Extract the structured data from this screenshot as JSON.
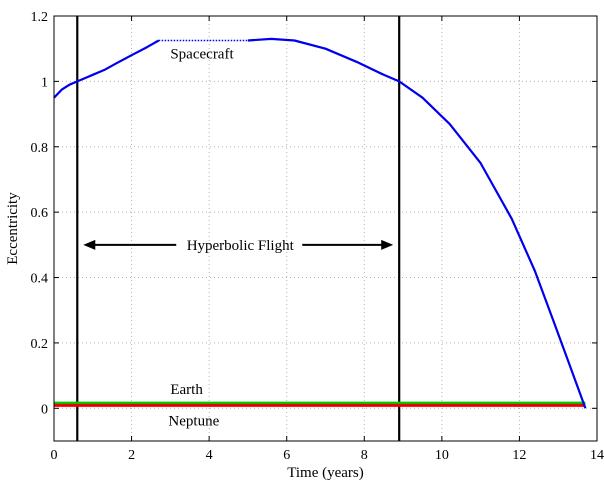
{
  "chart_data": {
    "type": "line",
    "title": "",
    "xlabel": "Time (years)",
    "ylabel": "Eccentricity",
    "xlim": [
      0,
      14
    ],
    "ylim": [
      -0.1,
      1.2
    ],
    "xticks": [
      0,
      2,
      4,
      6,
      8,
      10,
      12,
      14
    ],
    "yticks": [
      0,
      0.2,
      0.4,
      0.6,
      0.8,
      1,
      1.2
    ],
    "xtick_labels": [
      "0",
      "2",
      "4",
      "6",
      "8",
      "10",
      "12",
      "14"
    ],
    "ytick_labels": [
      "0",
      "0.2",
      "0.4",
      "0.6",
      "0.8",
      "1",
      "1.2"
    ],
    "grid": true,
    "series": [
      {
        "name": "Spacecraft",
        "color": "#0000ee",
        "segments": [
          {
            "style": "solid",
            "x": [
              0,
              0.2,
              0.4,
              0.6,
              0.8,
              1.0,
              1.3,
              1.6,
              2.0,
              2.4,
              2.7
            ],
            "y": [
              0.95,
              0.975,
              0.99,
              1.0,
              1.01,
              1.02,
              1.035,
              1.055,
              1.08,
              1.105,
              1.125
            ]
          },
          {
            "style": "dotted",
            "x": [
              2.7,
              5.0
            ],
            "y": [
              1.125,
              1.125
            ]
          },
          {
            "style": "solid",
            "x": [
              5.0,
              5.6,
              6.2,
              7.0,
              7.8,
              8.5,
              8.9,
              9.5,
              10.2,
              11.0,
              11.8,
              12.4,
              12.9,
              13.3,
              13.55,
              13.7
            ],
            "y": [
              1.125,
              1.13,
              1.125,
              1.1,
              1.06,
              1.02,
              1.0,
              0.95,
              0.87,
              0.75,
              0.58,
              0.42,
              0.26,
              0.13,
              0.05,
              0.0
            ]
          }
        ]
      },
      {
        "name": "Earth",
        "color": "#00cc00",
        "segments": [
          {
            "style": "solid",
            "x": [
              0,
              13.7
            ],
            "y": [
              0.016,
              0.016
            ]
          }
        ]
      },
      {
        "name": "Neptune",
        "color": "#ee0000",
        "segments": [
          {
            "style": "solid",
            "x": [
              0,
              13.7
            ],
            "y": [
              0.009,
              0.009
            ]
          }
        ]
      }
    ],
    "vertical_lines": [
      0.6,
      8.9
    ],
    "annotations": {
      "spacecraft": "Spacecraft",
      "earth": "Earth",
      "neptune": "Neptune",
      "hyperbolic": "Hyperbolic Flight"
    }
  }
}
